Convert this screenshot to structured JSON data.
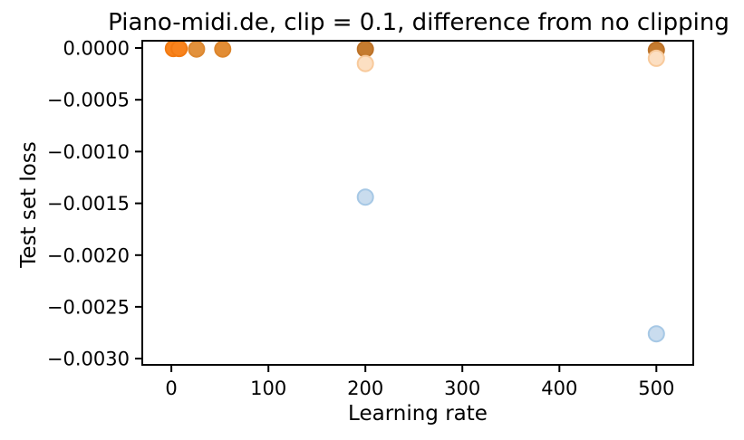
{
  "chart_data": {
    "type": "scatter",
    "title": "Piano-midi.de, clip = 0.1, difference from no clipping",
    "xlabel": "Learning rate",
    "ylabel": "Test set loss",
    "xlim": [
      -30,
      538
    ],
    "ylim": [
      -0.00306,
      7e-05
    ],
    "grid": false,
    "legend_position": "none",
    "xticks": [
      {
        "value": 0,
        "label": "0"
      },
      {
        "value": 100,
        "label": "100"
      },
      {
        "value": 200,
        "label": "200"
      },
      {
        "value": 300,
        "label": "300"
      },
      {
        "value": 400,
        "label": "400"
      },
      {
        "value": 500,
        "label": "500"
      }
    ],
    "yticks": [
      {
        "value": 0.0,
        "label": "0.0000"
      },
      {
        "value": -0.0005,
        "label": "−0.0005"
      },
      {
        "value": -0.001,
        "label": "−0.0010"
      },
      {
        "value": -0.0015,
        "label": "−0.0015"
      },
      {
        "value": -0.002,
        "label": "−0.0020"
      },
      {
        "value": -0.0025,
        "label": "−0.0025"
      },
      {
        "value": -0.003,
        "label": "−0.0030"
      }
    ],
    "series": [
      {
        "name": "orange-bright-cluster",
        "points": [
          {
            "x": 2,
            "y": -5e-06,
            "fill": "#f8831d",
            "stroke": "#f27a12"
          },
          {
            "x": 8,
            "y": -5e-06,
            "fill": "#f8831d",
            "stroke": "#f27a12"
          },
          {
            "x": 26,
            "y": -1e-05,
            "fill": "#e2913c",
            "stroke": "#dc8831"
          },
          {
            "x": 53,
            "y": -1e-05,
            "fill": "#e28d35",
            "stroke": "#dc852c"
          }
        ]
      },
      {
        "name": "orange-dark",
        "points": [
          {
            "x": 200,
            "y": -1e-05,
            "fill": "#c57b2f",
            "stroke": "#bc7228"
          },
          {
            "x": 500,
            "y": -2e-05,
            "fill": "#c57b2f",
            "stroke": "#bc7228"
          }
        ]
      },
      {
        "name": "orange-pale",
        "points": [
          {
            "x": 200,
            "y": -0.00015,
            "fill": "#fcdfc2",
            "stroke": "#f8ca9c"
          },
          {
            "x": 500,
            "y": -0.0001,
            "fill": "#fcdfc2",
            "stroke": "#f8ca9c"
          }
        ]
      },
      {
        "name": "blue",
        "points": [
          {
            "x": 200,
            "y": -0.00144,
            "fill": "#c9dcee",
            "stroke": "#a6c8e5"
          },
          {
            "x": 500,
            "y": -0.00276,
            "fill": "#c9dcee",
            "stroke": "#a6c8e5"
          }
        ]
      }
    ],
    "spine_color": "#000000"
  }
}
